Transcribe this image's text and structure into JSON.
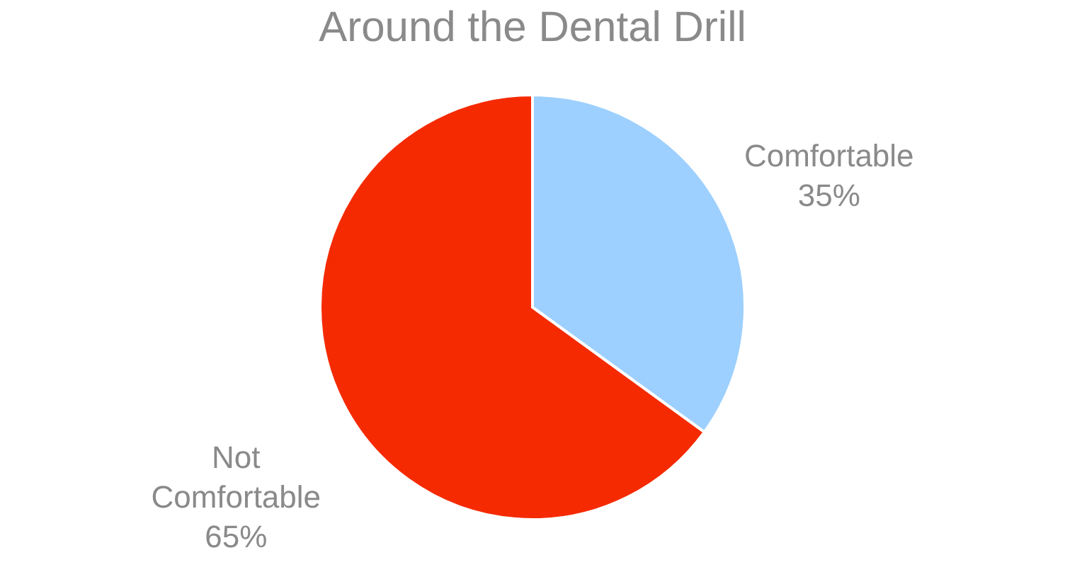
{
  "chart_data": {
    "type": "pie",
    "title": "Around the Dental Drill",
    "categories": [
      "Comfortable",
      "Not Comfortable"
    ],
    "values": [
      35,
      65
    ],
    "value_labels": [
      "35%",
      "65%"
    ],
    "colors": [
      "#9dd0fe",
      "#f52a00"
    ],
    "legend": false
  }
}
